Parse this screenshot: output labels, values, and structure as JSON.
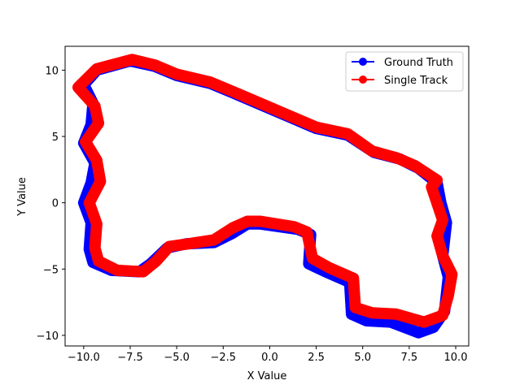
{
  "chart_data": {
    "type": "line",
    "title": "",
    "xlabel": "X Value",
    "ylabel": "Y Value",
    "xlim": [
      -11.0,
      10.7
    ],
    "ylim": [
      -10.8,
      11.8
    ],
    "xticks": [
      -10.0,
      -7.5,
      -5.0,
      -2.5,
      0.0,
      2.5,
      5.0,
      7.5,
      10.0
    ],
    "xtick_labels": [
      "−10.0",
      "−7.5",
      "−5.0",
      "−2.5",
      "0.0",
      "2.5",
      "5.0",
      "7.5",
      "10.0"
    ],
    "yticks": [
      10,
      5,
      0,
      -5,
      -10
    ],
    "ytick_labels": [
      "10",
      "5",
      "0",
      "−5",
      "−10"
    ],
    "grid": false,
    "legend_position": "top-right",
    "series": [
      {
        "name": "Ground Truth",
        "color": "#0000ff",
        "marker": "circle",
        "points": [
          [
            -0.5,
            -1.6
          ],
          [
            1.5,
            -2.0
          ],
          [
            2.2,
            -2.4
          ],
          [
            2.1,
            -4.6
          ],
          [
            3.0,
            -5.2
          ],
          [
            4.3,
            -6.0
          ],
          [
            4.4,
            -8.4
          ],
          [
            5.2,
            -8.9
          ],
          [
            6.5,
            -9.0
          ],
          [
            8.0,
            -9.8
          ],
          [
            8.8,
            -9.4
          ],
          [
            9.4,
            -8.2
          ],
          [
            9.6,
            -5.6
          ],
          [
            9.3,
            -4.0
          ],
          [
            9.5,
            -1.5
          ],
          [
            9.2,
            0.0
          ],
          [
            9.0,
            1.5
          ],
          [
            8.0,
            2.6
          ],
          [
            7.0,
            3.3
          ],
          [
            5.6,
            3.8
          ],
          [
            4.2,
            5.1
          ],
          [
            2.5,
            5.6
          ],
          [
            1.0,
            6.5
          ],
          [
            -0.5,
            7.4
          ],
          [
            -2.0,
            8.3
          ],
          [
            -3.2,
            9.0
          ],
          [
            -5.0,
            9.6
          ],
          [
            -6.2,
            10.3
          ],
          [
            -7.5,
            10.7
          ],
          [
            -9.3,
            10.0
          ],
          [
            -10.0,
            8.9
          ],
          [
            -9.5,
            7.5
          ],
          [
            -9.6,
            5.9
          ],
          [
            -10.0,
            4.5
          ],
          [
            -9.4,
            3.0
          ],
          [
            -9.6,
            1.5
          ],
          [
            -10.0,
            0.0
          ],
          [
            -9.6,
            -1.5
          ],
          [
            -9.7,
            -3.5
          ],
          [
            -9.5,
            -4.5
          ],
          [
            -8.5,
            -5.1
          ],
          [
            -7.0,
            -5.2
          ],
          [
            -6.4,
            -4.6
          ],
          [
            -5.5,
            -3.4
          ],
          [
            -4.5,
            -3.1
          ],
          [
            -3.0,
            -3.0
          ],
          [
            -2.0,
            -2.3
          ],
          [
            -1.2,
            -1.6
          ],
          [
            -0.5,
            -1.6
          ]
        ]
      },
      {
        "name": "Single Track",
        "color": "#ff0000",
        "marker": "circle",
        "points": [
          [
            -0.5,
            -1.4
          ],
          [
            1.3,
            -1.8
          ],
          [
            2.0,
            -2.2
          ],
          [
            2.3,
            -4.2
          ],
          [
            3.2,
            -4.9
          ],
          [
            4.5,
            -5.7
          ],
          [
            4.6,
            -7.9
          ],
          [
            5.5,
            -8.3
          ],
          [
            6.8,
            -8.4
          ],
          [
            8.3,
            -9.0
          ],
          [
            9.3,
            -8.5
          ],
          [
            9.6,
            -7.0
          ],
          [
            9.8,
            -5.4
          ],
          [
            9.3,
            -4.0
          ],
          [
            9.0,
            -2.5
          ],
          [
            9.3,
            -1.3
          ],
          [
            8.7,
            1.2
          ],
          [
            9.0,
            1.7
          ],
          [
            7.8,
            2.8
          ],
          [
            6.8,
            3.4
          ],
          [
            5.5,
            3.9
          ],
          [
            4.2,
            5.2
          ],
          [
            2.5,
            5.7
          ],
          [
            1.0,
            6.6
          ],
          [
            -0.5,
            7.5
          ],
          [
            -2.0,
            8.4
          ],
          [
            -3.2,
            9.1
          ],
          [
            -5.0,
            9.7
          ],
          [
            -6.2,
            10.4
          ],
          [
            -7.4,
            10.8
          ],
          [
            -9.3,
            10.1
          ],
          [
            -10.3,
            8.7
          ],
          [
            -9.4,
            7.3
          ],
          [
            -9.2,
            6.0
          ],
          [
            -9.9,
            4.6
          ],
          [
            -9.3,
            3.2
          ],
          [
            -9.1,
            1.6
          ],
          [
            -9.7,
            0.0
          ],
          [
            -9.3,
            -1.6
          ],
          [
            -9.4,
            -3.4
          ],
          [
            -9.2,
            -4.4
          ],
          [
            -8.2,
            -5.1
          ],
          [
            -6.8,
            -5.2
          ],
          [
            -6.1,
            -4.4
          ],
          [
            -5.4,
            -3.3
          ],
          [
            -4.4,
            -3.1
          ],
          [
            -3.0,
            -2.8
          ],
          [
            -2.0,
            -1.9
          ],
          [
            -1.2,
            -1.4
          ],
          [
            -0.5,
            -1.4
          ]
        ]
      }
    ]
  }
}
